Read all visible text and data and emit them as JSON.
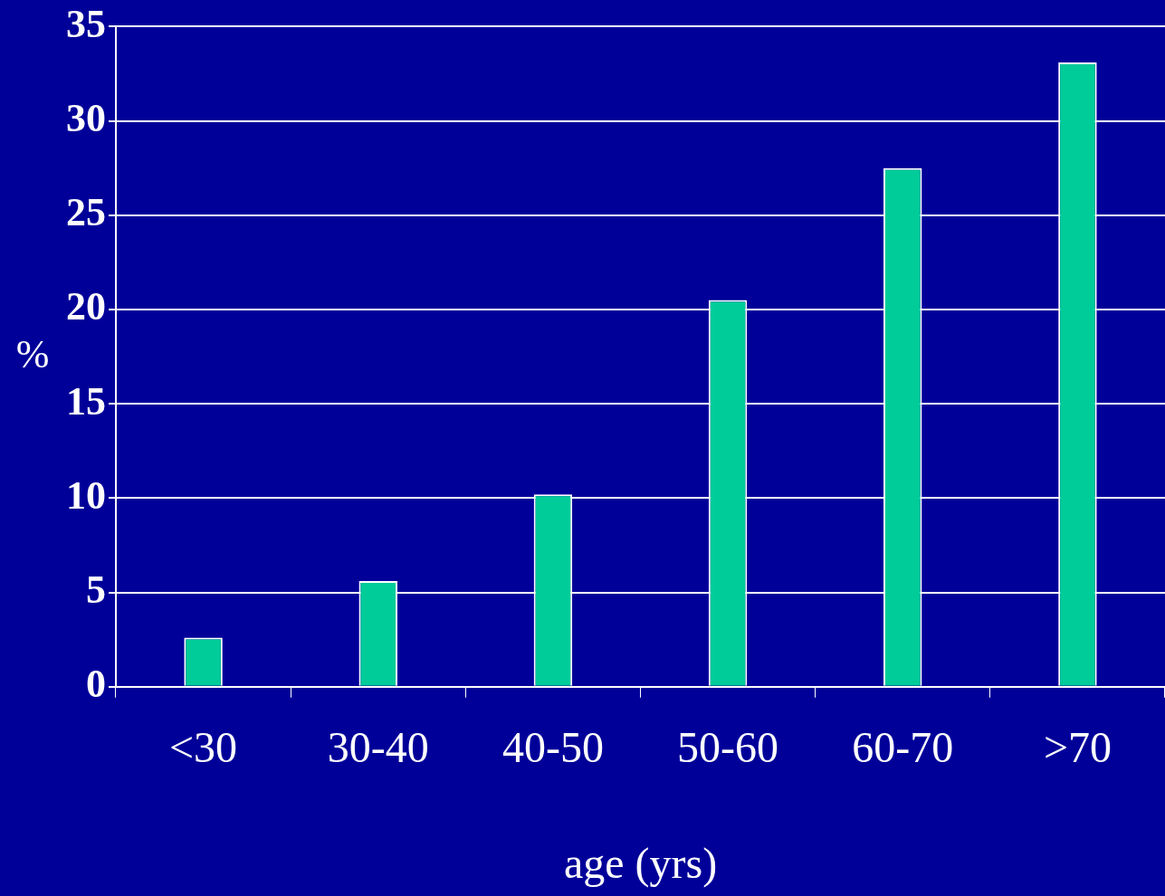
{
  "chart_data": {
    "type": "bar",
    "xlabel": "age (yrs)",
    "ylabel": "%",
    "categories": [
      "<30",
      "30-40",
      "40-50",
      "50-60",
      "60-70",
      ">70"
    ],
    "values": [
      2.6,
      5.6,
      10.2,
      20.5,
      27.5,
      33.1
    ],
    "color": "#00cc99",
    "ylim": [
      0,
      35
    ],
    "yticks": [
      0,
      5,
      10,
      15,
      20,
      25,
      30,
      35
    ],
    "grid": "y",
    "legend": false
  }
}
